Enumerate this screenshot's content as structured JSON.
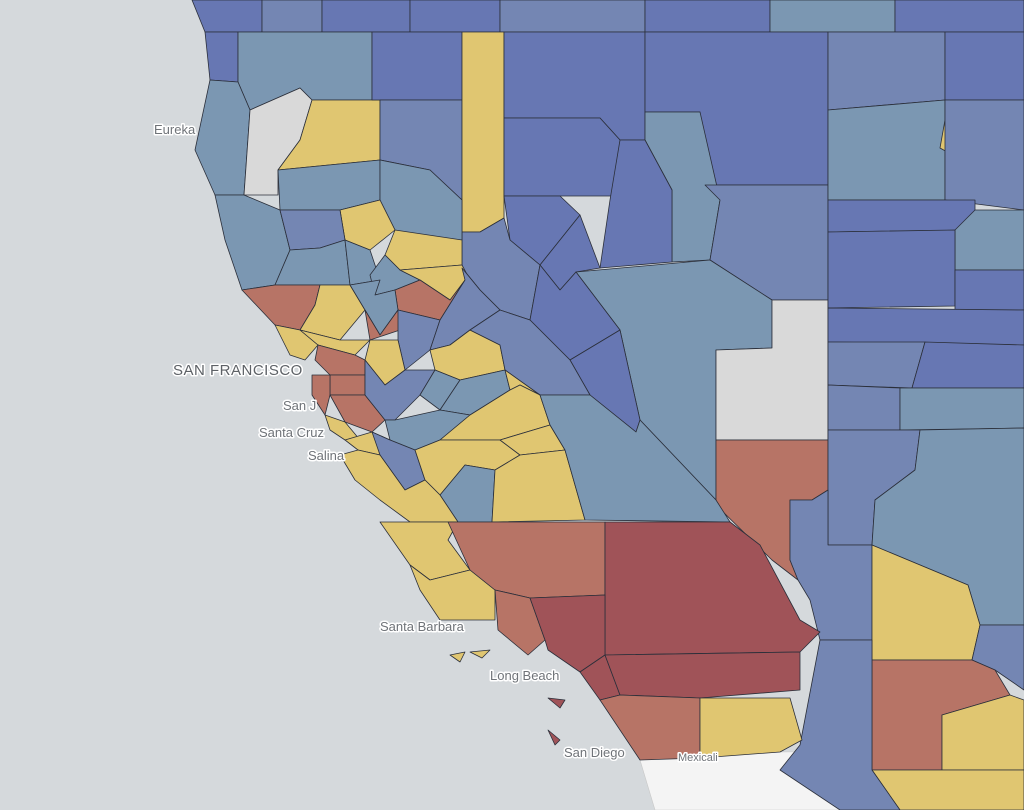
{
  "map": {
    "colors": {
      "ocean": "#d5d9dc",
      "mexico_land": "#f4f4f4",
      "category_blue_dark": "#6777b3",
      "category_blue_mid": "#7486b3",
      "category_blue_light": "#7b97b2",
      "category_yellow": "#e0c671",
      "category_salmon": "#b77466",
      "category_crimson": "#a05358",
      "no_data_gray": "#d9d9d9"
    },
    "labels": {
      "eureka": "Eureka",
      "san_francisco": "SAN FRANCISCO",
      "san_jose": "San J",
      "santa_cruz": "Santa Cruz",
      "salinas": "Salina",
      "santa_barbara": "Santa Barbara",
      "long_beach": "Long Beach",
      "san_diego": "San Diego",
      "mexicali": "Mexicali"
    }
  }
}
